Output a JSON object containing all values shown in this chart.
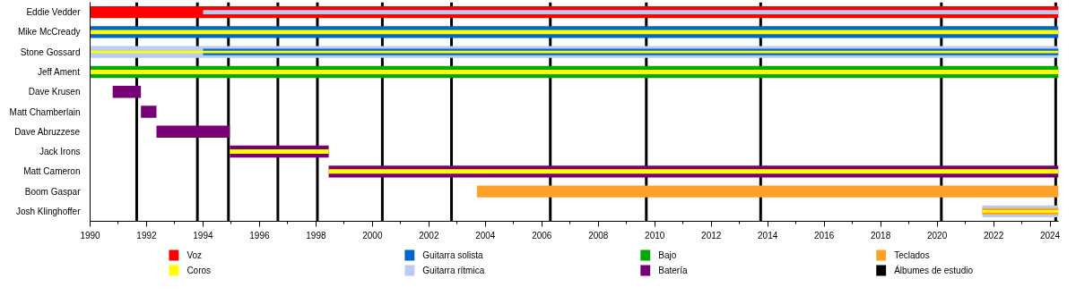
{
  "chart_data": {
    "type": "bar",
    "orientation": "horizontal",
    "legend": "bottom",
    "grid": false,
    "categories": [
      "Eddie Vedder",
      "Mike McCready",
      "Stone Gossard",
      "Jeff Ament",
      "Dave Krusen",
      "Matt Chamberlain",
      "Dave Abruzzese",
      "Jack Irons",
      "Matt Cameron",
      "Boom Gaspar",
      "Josh Klinghoffer"
    ],
    "xlim": [
      1990,
      2024.3
    ],
    "xticks": [
      1990,
      {
        "value": 1991,
        "label": null
      },
      1992,
      {
        "value": 1993,
        "label": null
      },
      1994,
      {
        "value": 1995,
        "label": null
      },
      1996,
      {
        "value": 1997,
        "label": null
      },
      1998,
      {
        "value": 1999,
        "label": null
      },
      2000,
      {
        "value": 2001,
        "label": null
      },
      2002,
      {
        "value": 2003,
        "label": null
      },
      2004,
      {
        "value": 2005,
        "label": null
      },
      2006,
      {
        "value": 2007,
        "label": null
      },
      2008,
      {
        "value": 2009,
        "label": null
      },
      2010,
      {
        "value": 2011,
        "label": null
      },
      2012,
      {
        "value": 2013,
        "label": null
      },
      2014,
      {
        "value": 2015,
        "label": null
      },
      2016,
      {
        "value": 2017,
        "label": null
      },
      2018,
      {
        "value": 2019,
        "label": null
      },
      2020,
      {
        "value": 2021,
        "label": null
      },
      2022,
      {
        "value": 2023,
        "label": null
      },
      2024
    ],
    "series": [
      {
        "name": "Voz",
        "color": "#ff0000",
        "base": [
          1990,
          null,
          null,
          null,
          null,
          null,
          null,
          null,
          null,
          null,
          null
        ],
        "values": [
          34.3,
          null,
          null,
          null,
          null,
          null,
          null,
          null,
          null,
          null,
          null
        ]
      },
      {
        "name": "Coros",
        "color": "#ffff00",
        "base": [
          null,
          1990,
          1990,
          1990,
          null,
          null,
          null,
          1994.95,
          1998.45,
          null,
          2021.6
        ],
        "values": [
          null,
          34.3,
          34.3,
          34.3,
          null,
          null,
          null,
          3.5,
          25.85,
          null,
          2.7
        ]
      },
      {
        "name": "Guitarra solista",
        "color": "#0066cc",
        "base": [
          null,
          1990,
          1994,
          null,
          null,
          null,
          null,
          null,
          null,
          null,
          null
        ],
        "values": [
          null,
          34.3,
          30.3,
          null,
          null,
          null,
          null,
          null,
          null,
          null,
          null
        ]
      },
      {
        "name": "Guitarra rítmica",
        "color": "#b8ccf5",
        "base": [
          1994,
          null,
          1990,
          null,
          null,
          null,
          null,
          null,
          null,
          null,
          2021.6
        ],
        "values": [
          30.3,
          null,
          34.3,
          null,
          null,
          null,
          null,
          null,
          null,
          null,
          2.7
        ]
      },
      {
        "name": "Bajo",
        "color": "#00aa00",
        "base": [
          null,
          null,
          null,
          1990,
          null,
          null,
          null,
          null,
          null,
          null,
          null
        ],
        "values": [
          null,
          null,
          null,
          34.3,
          null,
          null,
          null,
          null,
          null,
          null,
          null
        ]
      },
      {
        "name": "Batería",
        "color": "#770077",
        "base": [
          null,
          null,
          null,
          null,
          1990.8,
          1991.8,
          1992.35,
          1994.95,
          1998.45,
          null,
          null
        ],
        "values": [
          null,
          null,
          null,
          null,
          1.0,
          0.55,
          2.6,
          3.5,
          25.85,
          null,
          null
        ]
      },
      {
        "name": "Teclados",
        "color": "#ffa02a",
        "base": [
          null,
          null,
          null,
          null,
          null,
          null,
          null,
          null,
          null,
          2003.7,
          2021.6
        ],
        "values": [
          null,
          null,
          null,
          null,
          null,
          null,
          null,
          null,
          null,
          20.6,
          2.7
        ]
      }
    ],
    "ref_lines": [
      {
        "axis": "x",
        "value": 1991.65,
        "label": "Álbumes de estudio",
        "color": "#000000"
      },
      {
        "axis": "x",
        "value": 1993.8,
        "color": "#000000"
      },
      {
        "axis": "x",
        "value": 1994.9,
        "color": "#000000"
      },
      {
        "axis": "x",
        "value": 1996.65,
        "color": "#000000"
      },
      {
        "axis": "x",
        "value": 1998.05,
        "color": "#000000"
      },
      {
        "axis": "x",
        "value": 2000.35,
        "color": "#000000"
      },
      {
        "axis": "x",
        "value": 2002.8,
        "color": "#000000"
      },
      {
        "axis": "x",
        "value": 2006.3,
        "color": "#000000"
      },
      {
        "axis": "x",
        "value": 2009.7,
        "color": "#000000"
      },
      {
        "axis": "x",
        "value": 2013.75,
        "color": "#000000"
      },
      {
        "axis": "x",
        "value": 2020.15,
        "color": "#000000"
      },
      {
        "axis": "x",
        "value": 2024.2,
        "color": "#000000"
      }
    ]
  }
}
